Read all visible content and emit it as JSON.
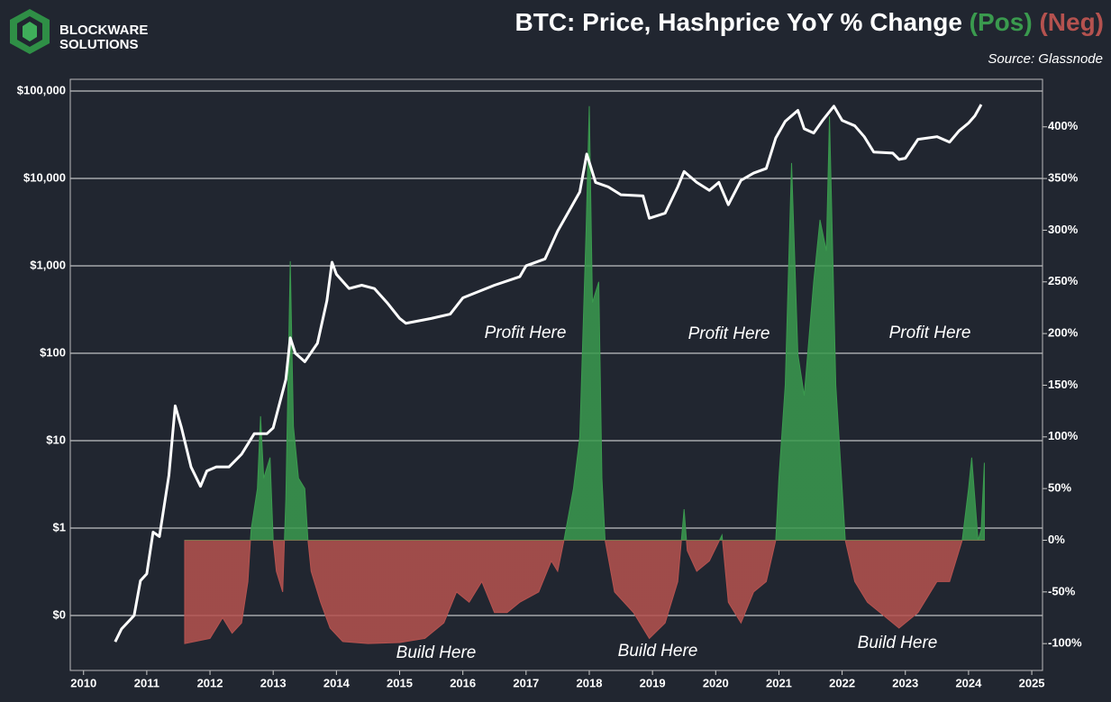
{
  "brand": {
    "line1": "BLOCKWARE",
    "line2": "SOLUTIONS"
  },
  "chart_data": {
    "type": "line-area",
    "title": "BTC: Price, Hashprice YoY % Change",
    "title_pos": "(Pos)",
    "title_neg": "(Neg)",
    "subtitle": "Source: Glassnode",
    "annotations": [
      "Profit Here",
      "Profit Here",
      "Profit Here",
      "Build Here",
      "Build Here",
      "Build Here"
    ],
    "xlim": [
      2009.79,
      2025.17
    ],
    "xticks": [
      2010,
      2011,
      2012,
      2013,
      2014,
      2015,
      2016,
      2017,
      2018,
      2019,
      2020,
      2021,
      2022,
      2023,
      2024,
      2025
    ],
    "yscale": "log",
    "ylim": [
      0.0235,
      136000
    ],
    "yticks": [
      {
        "value": 0.1,
        "label": "$0"
      },
      {
        "value": 1,
        "label": "$1"
      },
      {
        "value": 10,
        "label": "$10"
      },
      {
        "value": 100,
        "label": "$100"
      },
      {
        "value": 1000,
        "label": "$1,000"
      },
      {
        "value": 10000,
        "label": "$10,000"
      },
      {
        "value": 100000,
        "label": "$100,000"
      }
    ],
    "y2lim": [
      -126,
      446
    ],
    "y2ticks": [
      {
        "value": -100,
        "label": "-100%"
      },
      {
        "value": -50,
        "label": "-50%"
      },
      {
        "value": 0,
        "label": "0%"
      },
      {
        "value": 50,
        "label": "50%"
      },
      {
        "value": 100,
        "label": "100%"
      },
      {
        "value": 150,
        "label": "150%"
      },
      {
        "value": 200,
        "label": "200%"
      },
      {
        "value": 250,
        "label": "250%"
      },
      {
        "value": 300,
        "label": "300%"
      },
      {
        "value": 350,
        "label": "350%"
      },
      {
        "value": 400,
        "label": "400%"
      }
    ],
    "grid": true,
    "series": [
      {
        "color": "#ffffff",
        "axis": "y",
        "x": [
          2010.5,
          2010.6,
          2010.8,
          2010.9,
          2011.0,
          2011.1,
          2011.2,
          2011.35,
          2011.45,
          2011.55,
          2011.7,
          2011.85,
          2011.95,
          2012.1,
          2012.3,
          2012.5,
          2012.7,
          2012.9,
          2013.0,
          2013.2,
          2013.27,
          2013.35,
          2013.5,
          2013.7,
          2013.85,
          2013.93,
          2014.0,
          2014.2,
          2014.4,
          2014.6,
          2014.8,
          2015.0,
          2015.1,
          2015.5,
          2015.8,
          2016.0,
          2016.5,
          2016.9,
          2017.0,
          2017.3,
          2017.5,
          2017.7,
          2017.85,
          2017.96,
          2018.1,
          2018.3,
          2018.5,
          2018.85,
          2018.95,
          2019.2,
          2019.4,
          2019.5,
          2019.7,
          2019.9,
          2020.05,
          2020.2,
          2020.4,
          2020.6,
          2020.8,
          2020.95,
          2021.1,
          2021.3,
          2021.4,
          2021.55,
          2021.7,
          2021.87,
          2022.0,
          2022.2,
          2022.35,
          2022.5,
          2022.8,
          2022.9,
          2023.0,
          2023.2,
          2023.5,
          2023.7,
          2023.85,
          2024.0,
          2024.1,
          2024.2
        ],
        "values": [
          0.05,
          0.07,
          0.1,
          0.25,
          0.3,
          0.9,
          0.8,
          4,
          25,
          14,
          5,
          3,
          4.5,
          5,
          5,
          7,
          12,
          12,
          14,
          50,
          150,
          100,
          80,
          130,
          400,
          1100,
          800,
          550,
          600,
          550,
          380,
          250,
          220,
          250,
          280,
          430,
          600,
          750,
          1000,
          1200,
          2500,
          4500,
          7000,
          19000,
          9000,
          8000,
          6500,
          6300,
          3500,
          4000,
          8000,
          12000,
          9000,
          7300,
          9000,
          5000,
          9500,
          11500,
          13000,
          29000,
          45000,
          60000,
          37000,
          33000,
          47000,
          67000,
          46000,
          40000,
          30000,
          20000,
          19500,
          16500,
          17000,
          28000,
          30000,
          26000,
          35000,
          43000,
          52000,
          70000
        ]
      },
      {
        "color": "#3a9a4e",
        "negative_color": "#b5524f",
        "axis": "y2",
        "x": [
          2011.6,
          2012.0,
          2012.2,
          2012.35,
          2012.5,
          2012.6,
          2012.65,
          2012.75,
          2012.8,
          2012.85,
          2012.95,
          2013.0,
          2013.05,
          2013.15,
          2013.2,
          2013.27,
          2013.32,
          2013.4,
          2013.5,
          2013.55,
          2013.6,
          2013.75,
          2013.9,
          2014.1,
          2014.5,
          2015.0,
          2015.4,
          2015.7,
          2015.9,
          2016.1,
          2016.3,
          2016.5,
          2016.7,
          2016.9,
          2017.2,
          2017.4,
          2017.5,
          2017.6,
          2017.75,
          2017.85,
          2017.95,
          2018.0,
          2018.05,
          2018.15,
          2018.2,
          2018.25,
          2018.4,
          2018.7,
          2018.95,
          2019.2,
          2019.4,
          2019.5,
          2019.55,
          2019.7,
          2019.9,
          2020.1,
          2020.2,
          2020.4,
          2020.6,
          2020.8,
          2020.95,
          2021.0,
          2021.1,
          2021.2,
          2021.3,
          2021.4,
          2021.55,
          2021.65,
          2021.75,
          2021.8,
          2021.9,
          2022.0,
          2022.05,
          2022.2,
          2022.4,
          2022.6,
          2022.9,
          2023.0,
          2023.2,
          2023.5,
          2023.7,
          2023.85,
          2023.9,
          2024.0,
          2024.05,
          2024.15,
          2024.2,
          2024.25
        ],
        "values": [
          -100,
          -95,
          -75,
          -90,
          -80,
          -40,
          10,
          50,
          120,
          60,
          80,
          0,
          -30,
          -50,
          40,
          270,
          110,
          60,
          50,
          0,
          -30,
          -60,
          -85,
          -98,
          -100,
          -99,
          -95,
          -80,
          -50,
          -60,
          -40,
          -70,
          -70,
          -60,
          -50,
          -20,
          -30,
          0,
          50,
          100,
          300,
          420,
          230,
          250,
          60,
          0,
          -50,
          -70,
          -95,
          -80,
          -40,
          30,
          -10,
          -30,
          -20,
          5,
          -60,
          -80,
          -50,
          -40,
          0,
          60,
          150,
          365,
          180,
          140,
          250,
          310,
          280,
          410,
          150,
          50,
          0,
          -40,
          -60,
          -70,
          -85,
          -80,
          -70,
          -40,
          -40,
          -10,
          0,
          50,
          80,
          0,
          10,
          75
        ]
      }
    ]
  }
}
